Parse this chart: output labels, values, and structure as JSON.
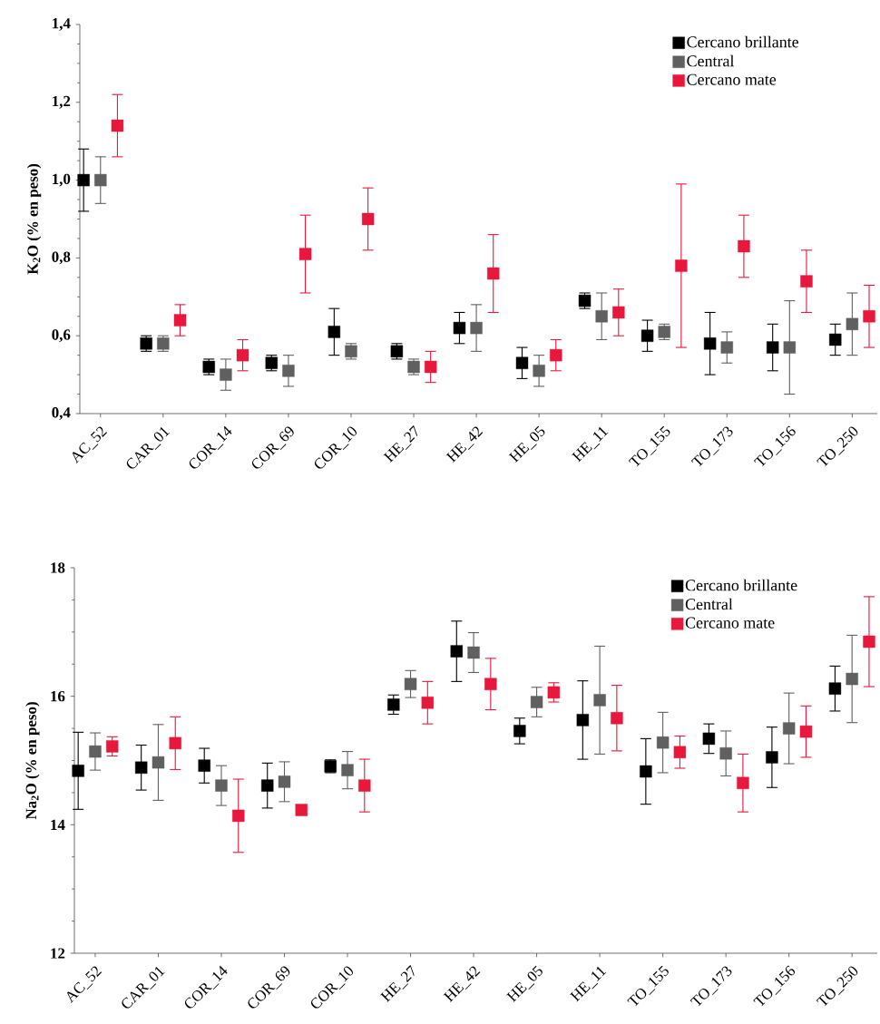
{
  "chart_data": [
    {
      "type": "scatter",
      "ylabel": "K$_{2}$O (% en peso)",
      "marker": "square",
      "legend": "top right",
      "categories": [
        "AC_52",
        "CAR_01",
        "COR_14",
        "COR_69",
        "COR_10",
        "HE_27",
        "HE_42",
        "HE_05",
        "HE_11",
        "TO_155",
        "TO_173",
        "TO_156",
        "TO_250"
      ],
      "ylim": [
        0.4,
        1.4
      ],
      "yticks": [
        {
          "value": 0.4,
          "label": "0,4"
        },
        {
          "value": 0.6,
          "label": "0,6"
        },
        {
          "value": 0.8,
          "label": "0,8"
        },
        {
          "value": 1.0,
          "label": "1,0"
        },
        {
          "value": 1.2,
          "label": "1,2"
        },
        {
          "value": 1.4,
          "label": "1,4"
        }
      ],
      "series": [
        {
          "name": "Cercano brillante",
          "color": "#000000",
          "values": [
            1.0,
            0.58,
            0.52,
            0.53,
            0.61,
            0.56,
            0.62,
            0.53,
            0.69,
            0.6,
            0.58,
            0.57,
            0.59
          ],
          "errors": [
            0.08,
            0.02,
            0.02,
            0.02,
            0.06,
            0.02,
            0.04,
            0.04,
            0.02,
            0.04,
            0.08,
            0.06,
            0.04
          ]
        },
        {
          "name": "Central",
          "color": "#606060",
          "values": [
            1.0,
            0.58,
            0.5,
            0.51,
            0.56,
            0.52,
            0.62,
            0.51,
            0.65,
            0.61,
            0.57,
            0.57,
            0.63
          ],
          "errors": [
            0.06,
            0.02,
            0.04,
            0.04,
            0.02,
            0.02,
            0.06,
            0.04,
            0.06,
            0.02,
            0.04,
            0.12,
            0.08
          ]
        },
        {
          "name": "Cercano mate",
          "color": "#e8173c",
          "values": [
            1.14,
            0.64,
            0.55,
            0.81,
            0.9,
            0.52,
            0.76,
            0.55,
            0.66,
            0.78,
            0.83,
            0.74,
            0.65
          ],
          "errors": [
            0.08,
            0.04,
            0.04,
            0.1,
            0.08,
            0.04,
            0.1,
            0.04,
            0.06,
            0.21,
            0.08,
            0.08,
            0.08
          ]
        }
      ]
    },
    {
      "type": "scatter",
      "ylabel": "Na$_{2}$O (% en peso)",
      "marker": "square",
      "legend": "top right",
      "categories": [
        "AC_52",
        "CAR_01",
        "COR_14",
        "COR_69",
        "COR_10",
        "HE_27",
        "HE_42",
        "HE_05",
        "HE_11",
        "TO_155",
        "TO_173",
        "TO_156",
        "TO_250"
      ],
      "ylim": [
        12,
        18
      ],
      "yticks": [
        12,
        14,
        16,
        18
      ],
      "series": [
        {
          "name": "Cercano brillante",
          "color": "#000000",
          "values": [
            14.84,
            14.89,
            14.92,
            14.61,
            14.91,
            15.87,
            16.7,
            15.46,
            15.63,
            14.83,
            15.34,
            15.05,
            16.12
          ],
          "errors": [
            0.6,
            0.35,
            0.27,
            0.35,
            0.1,
            0.15,
            0.47,
            0.2,
            0.61,
            0.51,
            0.23,
            0.47,
            0.35
          ]
        },
        {
          "name": "Central",
          "color": "#606060",
          "values": [
            15.14,
            14.97,
            14.61,
            14.67,
            14.85,
            16.19,
            16.68,
            15.91,
            15.94,
            15.28,
            15.11,
            15.5,
            16.27
          ],
          "errors": [
            0.29,
            0.59,
            0.31,
            0.31,
            0.29,
            0.21,
            0.31,
            0.23,
            0.84,
            0.47,
            0.35,
            0.55,
            0.68
          ]
        },
        {
          "name": "Cercano mate",
          "color": "#e8173c",
          "values": [
            15.22,
            15.27,
            14.14,
            14.23,
            14.61,
            15.9,
            16.19,
            16.06,
            15.66,
            15.13,
            14.65,
            15.45,
            16.85
          ],
          "errors": [
            0.15,
            0.41,
            0.57,
            null,
            0.41,
            0.33,
            0.4,
            0.15,
            0.51,
            0.25,
            0.45,
            0.4,
            0.7
          ]
        }
      ]
    }
  ]
}
